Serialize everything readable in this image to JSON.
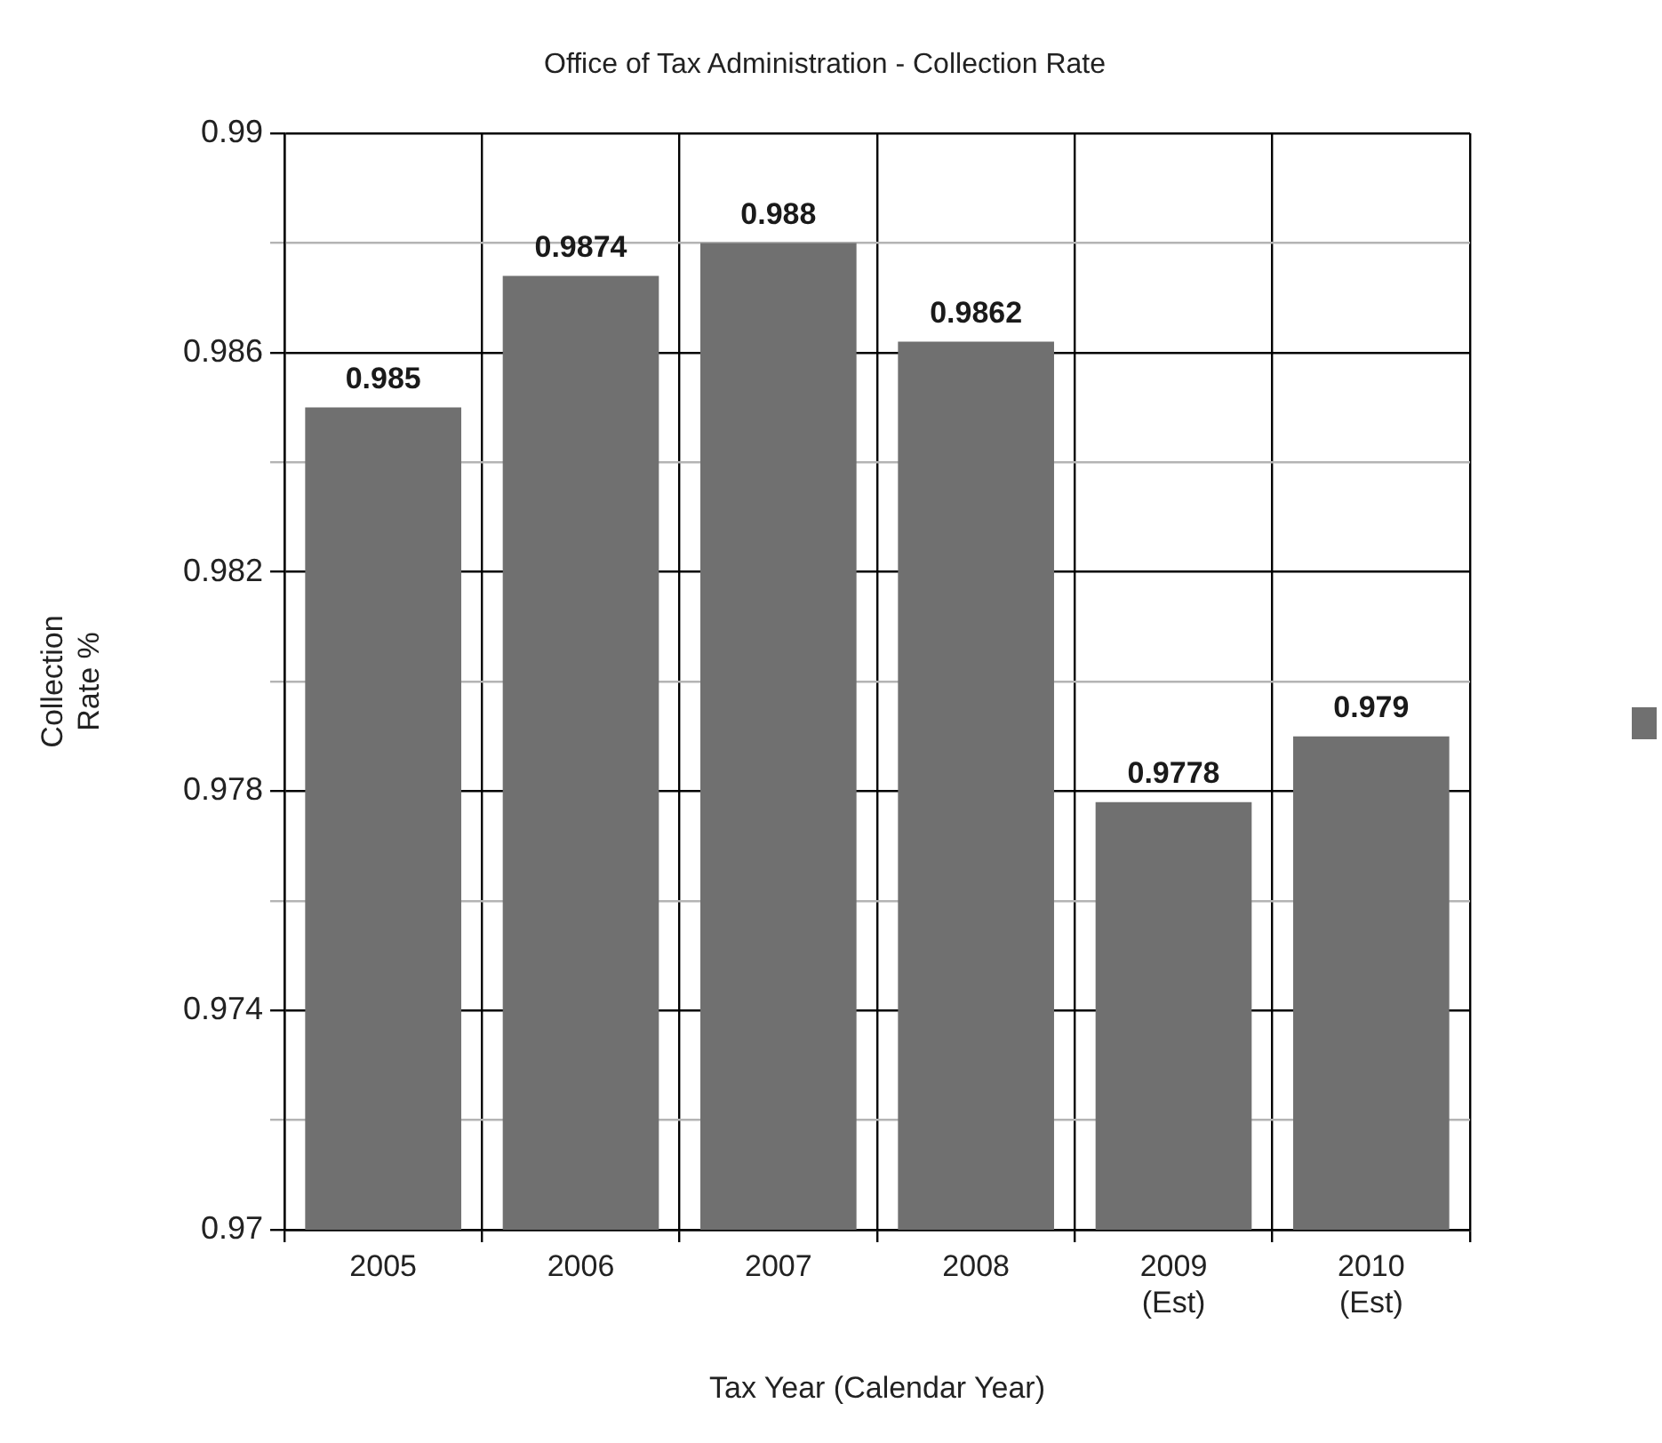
{
  "chart_data": {
    "type": "bar",
    "title": "Office of Tax Administration - Collection Rate",
    "xlabel": "Tax Year (Calendar Year)",
    "ylabel": "Collection\nRate %",
    "categories": [
      "2005",
      "2006",
      "2007",
      "2008",
      "2009\n(Est)",
      "2010\n(Est)"
    ],
    "values": [
      0.985,
      0.9874,
      0.988,
      0.9862,
      0.9778,
      0.979
    ],
    "color": "#707070",
    "ylim": [
      0.97,
      0.99
    ],
    "yticks": [
      0.97,
      {
        "value": 0.972,
        "label": null
      },
      0.974,
      {
        "value": 0.976,
        "label": null
      },
      0.978,
      {
        "value": 0.98,
        "label": null
      },
      0.982,
      {
        "value": 0.984,
        "label": null
      },
      0.986,
      {
        "value": 0.988,
        "label": null
      },
      0.99
    ],
    "grid": true,
    "data_labels": true
  }
}
